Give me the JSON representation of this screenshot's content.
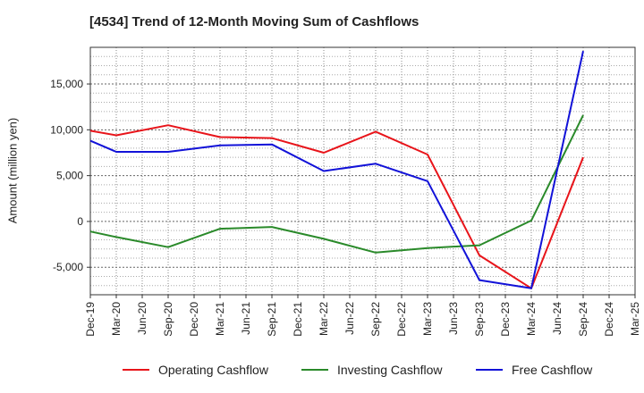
{
  "chart_data": {
    "type": "line",
    "title": "[4534]  Trend of 12-Month Moving Sum of Cashflows",
    "ylabel": "Amount (million yen)",
    "xlabel": "",
    "x": [
      "Dec-19",
      "Mar-20",
      "Jun-20",
      "Sep-20",
      "Dec-20",
      "Mar-21",
      "Jun-21",
      "Sep-21",
      "Dec-21",
      "Mar-22",
      "Jun-22",
      "Sep-22",
      "Dec-22",
      "Mar-23",
      "Jun-23",
      "Sep-23",
      "Dec-23",
      "Mar-24",
      "Jun-24",
      "Sep-24",
      "Dec-24",
      "Mar-25"
    ],
    "ylim": [
      -8000,
      19000
    ],
    "yticks": [
      -5000,
      0,
      5000,
      10000,
      15000
    ],
    "ytick_labels": [
      "-5,000",
      "0",
      "5,000",
      "10,000",
      "15,000"
    ],
    "grid": true,
    "legend_position": "bottom",
    "series": [
      {
        "name": "Operating Cashflow",
        "color": "#e8141a",
        "points": [
          [
            "Dec-19",
            9900
          ],
          [
            "Mar-20",
            9400
          ],
          [
            "Sep-20",
            10500
          ],
          [
            "Mar-21",
            9200
          ],
          [
            "Sep-21",
            9100
          ],
          [
            "Mar-22",
            7500
          ],
          [
            "Sep-22",
            9800
          ],
          [
            "Mar-23",
            7300
          ],
          [
            "Sep-23",
            -3700
          ],
          [
            "Mar-24",
            -7300
          ],
          [
            "Sep-24",
            7000
          ]
        ]
      },
      {
        "name": "Investing Cashflow",
        "color": "#2a8a2a",
        "points": [
          [
            "Dec-19",
            -1100
          ],
          [
            "Mar-20",
            -1700
          ],
          [
            "Sep-20",
            -2800
          ],
          [
            "Mar-21",
            -800
          ],
          [
            "Sep-21",
            -600
          ],
          [
            "Mar-22",
            -1900
          ],
          [
            "Sep-22",
            -3400
          ],
          [
            "Mar-23",
            -2900
          ],
          [
            "Sep-23",
            -2600
          ],
          [
            "Mar-24",
            100
          ],
          [
            "Sep-24",
            11600
          ]
        ]
      },
      {
        "name": "Free Cashflow",
        "color": "#1212d8",
        "points": [
          [
            "Dec-19",
            8800
          ],
          [
            "Mar-20",
            7600
          ],
          [
            "Sep-20",
            7600
          ],
          [
            "Mar-21",
            8300
          ],
          [
            "Sep-21",
            8400
          ],
          [
            "Mar-22",
            5500
          ],
          [
            "Sep-22",
            6300
          ],
          [
            "Mar-23",
            4400
          ],
          [
            "Sep-23",
            -6400
          ],
          [
            "Mar-24",
            -7300
          ],
          [
            "Sep-24",
            18600
          ]
        ]
      }
    ]
  }
}
